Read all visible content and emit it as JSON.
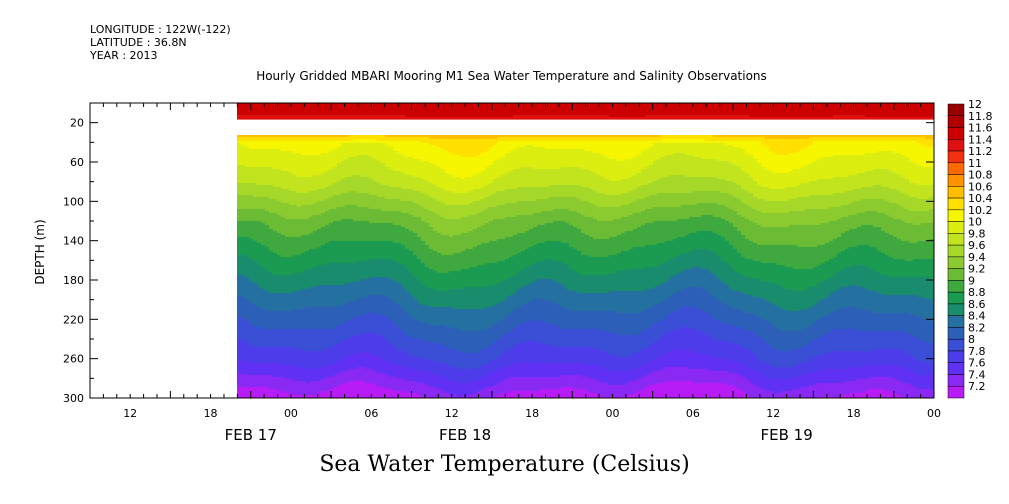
{
  "header": {
    "longitude": "LONGITUDE : 122W(-122)",
    "latitude": "LATITUDE : 36.8N",
    "year": "YEAR : 2013",
    "title": "Hourly Gridded MBARI Mooring M1 Sea Water Temperature and Salinity Observations"
  },
  "chart_data": {
    "type": "heatmap",
    "title": "Hourly Gridded MBARI Mooring M1 Sea Water Temperature and Salinity Observations",
    "xlabel": "Sea Water Temperature (Celsius)",
    "ylabel": "DEPTH (m)",
    "ylim": [
      300,
      0
    ],
    "y_ticks": [
      20,
      60,
      100,
      140,
      180,
      220,
      260,
      300
    ],
    "x_ticks_hours": [
      "12",
      "18",
      "00",
      "06",
      "12",
      "18",
      "00",
      "06",
      "12",
      "18",
      "00"
    ],
    "x_date_labels": [
      "FEB 17",
      "FEB 18",
      "FEB 19"
    ],
    "x_range": [
      "2013-02-17T09:00",
      "2013-02-20T00:00"
    ],
    "data_start": "2013-02-17T20:00",
    "levels": [
      "12",
      "11.8",
      "11.6",
      "11.4",
      "11.2",
      "11",
      "10.8",
      "10.6",
      "10.4",
      "10.2",
      "10",
      "9.8",
      "9.6",
      "9.4",
      "9.2",
      "9",
      "8.8",
      "8.6",
      "8.4",
      "8.2",
      "8",
      "7.8",
      "7.6",
      "7.4",
      "7.2"
    ],
    "colors": [
      "#990000",
      "#b20000",
      "#cc0000",
      "#e01010",
      "#f43010",
      "#ff6a00",
      "#ff9400",
      "#ffbe00",
      "#ffe000",
      "#f6f600",
      "#dcee10",
      "#c2e41e",
      "#a6d82a",
      "#8ccb30",
      "#6cbb34",
      "#3fa83e",
      "#1b9a52",
      "#1a8c6e",
      "#2470a0",
      "#2c60b8",
      "#3a4ed6",
      "#4c3cea",
      "#6030f4",
      "#8a28f4",
      "#b81cf6"
    ],
    "depth_profile": [
      {
        "depth": 10,
        "temp": 11.7
      },
      {
        "depth": 20,
        "temp": null
      },
      {
        "depth": 40,
        "temp": 10.3
      },
      {
        "depth": 60,
        "temp": 10.1
      },
      {
        "depth": 80,
        "temp": 9.9
      },
      {
        "depth": 100,
        "temp": 9.6
      },
      {
        "depth": 120,
        "temp": 9.3
      },
      {
        "depth": 140,
        "temp": 9.1
      },
      {
        "depth": 160,
        "temp": 8.9
      },
      {
        "depth": 180,
        "temp": 8.7
      },
      {
        "depth": 200,
        "temp": 8.5
      },
      {
        "depth": 220,
        "temp": 8.3
      },
      {
        "depth": 240,
        "temp": 8.1
      },
      {
        "depth": 260,
        "temp": 7.9
      },
      {
        "depth": 280,
        "temp": 7.6
      },
      {
        "depth": 300,
        "temp": 7.3
      }
    ]
  }
}
